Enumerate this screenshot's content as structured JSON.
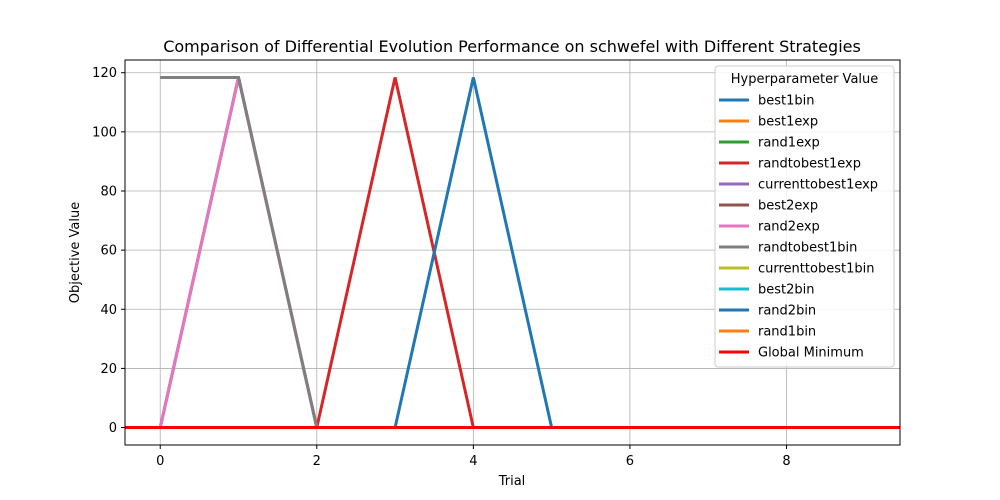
{
  "chart_data": {
    "type": "line",
    "title": "Comparison of Differential Evolution Performance on schwefel with Different Strategies",
    "xlabel": "Trial",
    "ylabel": "Objective Value",
    "xlim": [
      -0.45,
      9.45
    ],
    "ylim": [
      -5.9,
      124.3
    ],
    "xticks": [
      0,
      2,
      4,
      6,
      8
    ],
    "yticks": [
      0,
      20,
      40,
      60,
      80,
      100,
      120
    ],
    "grid": true,
    "legend": {
      "title": "Hyperparameter Value",
      "placement": "top-right"
    },
    "series": [
      {
        "name": "best1bin",
        "color": "#1f77b4",
        "x": [
          0,
          1,
          2,
          3,
          4,
          5,
          6,
          7,
          8,
          9
        ],
        "y": [
          0,
          0,
          0,
          0,
          0,
          0,
          0,
          0,
          0,
          0
        ]
      },
      {
        "name": "best1exp",
        "color": "#ff7f0e",
        "x": [
          0,
          1,
          2,
          3,
          4,
          5,
          6,
          7,
          8,
          9
        ],
        "y": [
          0,
          0,
          0,
          0,
          0,
          0,
          0,
          0,
          0,
          0
        ]
      },
      {
        "name": "rand1exp",
        "color": "#2ca02c",
        "x": [
          0,
          1,
          2,
          3,
          4,
          5,
          6,
          7,
          8,
          9
        ],
        "y": [
          0,
          0,
          0,
          0,
          0,
          0,
          0,
          0,
          0,
          0
        ]
      },
      {
        "name": "randtobest1exp",
        "color": "#d62728",
        "x": [
          0,
          1,
          2,
          3,
          4,
          5,
          6,
          7,
          8,
          9
        ],
        "y": [
          0,
          0,
          0,
          118.4,
          0,
          0,
          0,
          0,
          0,
          0
        ]
      },
      {
        "name": "currenttobest1exp",
        "color": "#9467bd",
        "x": [
          0,
          1,
          2,
          3,
          4,
          5,
          6,
          7,
          8,
          9
        ],
        "y": [
          0,
          118.4,
          0,
          0,
          0,
          0,
          0,
          0,
          0,
          0
        ]
      },
      {
        "name": "best2exp",
        "color": "#8c564b",
        "x": [
          0,
          1,
          2,
          3,
          4,
          5,
          6,
          7,
          8,
          9
        ],
        "y": [
          0,
          118.4,
          0,
          0,
          0,
          0,
          0,
          0,
          0,
          0
        ]
      },
      {
        "name": "rand2exp",
        "color": "#e377c2",
        "x": [
          0,
          1,
          2,
          3,
          4,
          5,
          6,
          7,
          8,
          9
        ],
        "y": [
          0,
          118.4,
          0,
          0,
          0,
          0,
          0,
          0,
          0,
          0
        ]
      },
      {
        "name": "randtobest1bin",
        "color": "#7f7f7f",
        "x": [
          0,
          1,
          2,
          3,
          4,
          5,
          6,
          7,
          8,
          9
        ],
        "y": [
          118.4,
          118.4,
          0,
          0,
          0,
          0,
          0,
          0,
          0,
          0
        ]
      },
      {
        "name": "currenttobest1bin",
        "color": "#bcbd22",
        "x": [
          0,
          1,
          2,
          3,
          4,
          5,
          6,
          7,
          8,
          9
        ],
        "y": [
          0,
          0,
          0,
          0,
          0,
          0,
          0,
          0,
          0,
          0
        ]
      },
      {
        "name": "best2bin",
        "color": "#17becf",
        "x": [
          0,
          1,
          2,
          3,
          4,
          5,
          6,
          7,
          8,
          9
        ],
        "y": [
          0,
          0,
          0,
          0,
          0,
          0,
          0,
          0,
          0,
          0
        ]
      },
      {
        "name": "rand2bin",
        "color": "#1f77b4",
        "x": [
          0,
          1,
          2,
          3,
          4,
          5,
          6,
          7,
          8,
          9
        ],
        "y": [
          0,
          0,
          0,
          0,
          118.4,
          0,
          0,
          0,
          0,
          0
        ]
      },
      {
        "name": "rand1bin",
        "color": "#ff7f0e",
        "x": [
          0,
          1,
          2,
          3,
          4,
          5,
          6,
          7,
          8,
          9
        ],
        "y": [
          0,
          0,
          0,
          0,
          0,
          0,
          0,
          0,
          0,
          0
        ]
      }
    ],
    "reference_lines": [
      {
        "name": "Global Minimum",
        "color": "#ff0000",
        "y": 0
      }
    ]
  }
}
